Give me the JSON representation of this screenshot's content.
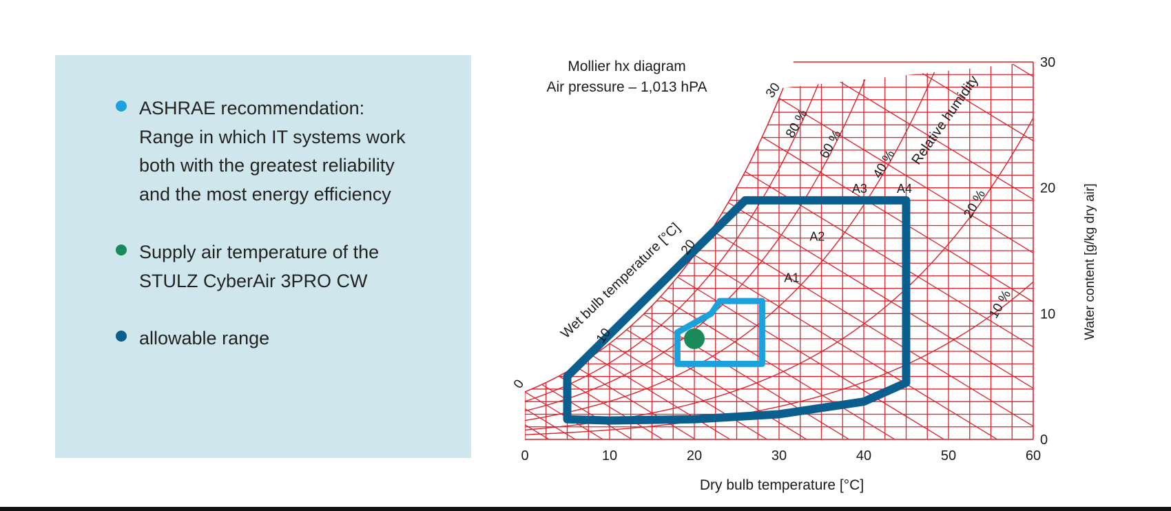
{
  "legend": {
    "items": [
      {
        "text": "ASHRAE recommendation:\nRange in which IT systems work\nboth with the greatest reliability\nand the most energy efficiency",
        "color": "#1ba1dc"
      },
      {
        "text": "Supply air temperature of the\nSTULZ CyberAir 3PRO CW",
        "color": "#1a8a5a"
      },
      {
        "text": "allowable range",
        "color": "#0a5f8e"
      }
    ]
  },
  "chart_data": {
    "type": "psychrometric",
    "title": "Mollier hx diagram",
    "subtitle": "Air pressure – 1,013 hPA",
    "xlabel": "Dry bulb temperature [°C]",
    "ylabel": "Water content [g/kg dry air]",
    "xlim": [
      0,
      60
    ],
    "ylim": [
      0,
      30
    ],
    "xticks": [
      "0",
      "10",
      "20",
      "30",
      "40",
      "50",
      "60"
    ],
    "yticks": [
      "0",
      "10",
      "20",
      "30"
    ],
    "grid_color": "#e0202a",
    "wet_bulb_label": "Wet bulb temperature [°C]",
    "wet_bulb_ticks": [
      "0",
      "10",
      "20",
      "30"
    ],
    "relative_humidity_label": "Relative humidity",
    "relative_humidity_ticks": [
      "80 %",
      "60 %",
      "40 %",
      "20 %",
      "10 %"
    ],
    "region_labels": [
      "A1",
      "A2",
      "A3",
      "A4"
    ],
    "series": [
      {
        "name": "allowable range",
        "color": "#0a5f8e",
        "x": [
          5,
          26,
          45,
          45,
          40,
          30,
          20,
          10,
          5,
          5
        ],
        "y": [
          5,
          19,
          19,
          4.5,
          3,
          2,
          1.6,
          1.5,
          1.6,
          5
        ]
      },
      {
        "name": "ASHRAE recommendation",
        "color": "#1ba1dc",
        "x": [
          18,
          22,
          23,
          28,
          28,
          18,
          18
        ],
        "y": [
          8.5,
          10,
          11,
          11,
          6,
          6,
          8.5
        ]
      },
      {
        "name": "Supply air temperature of the STULZ CyberAir 3PRO CW",
        "color": "#1a8a5a",
        "x": [
          20
        ],
        "y": [
          8
        ]
      }
    ]
  }
}
